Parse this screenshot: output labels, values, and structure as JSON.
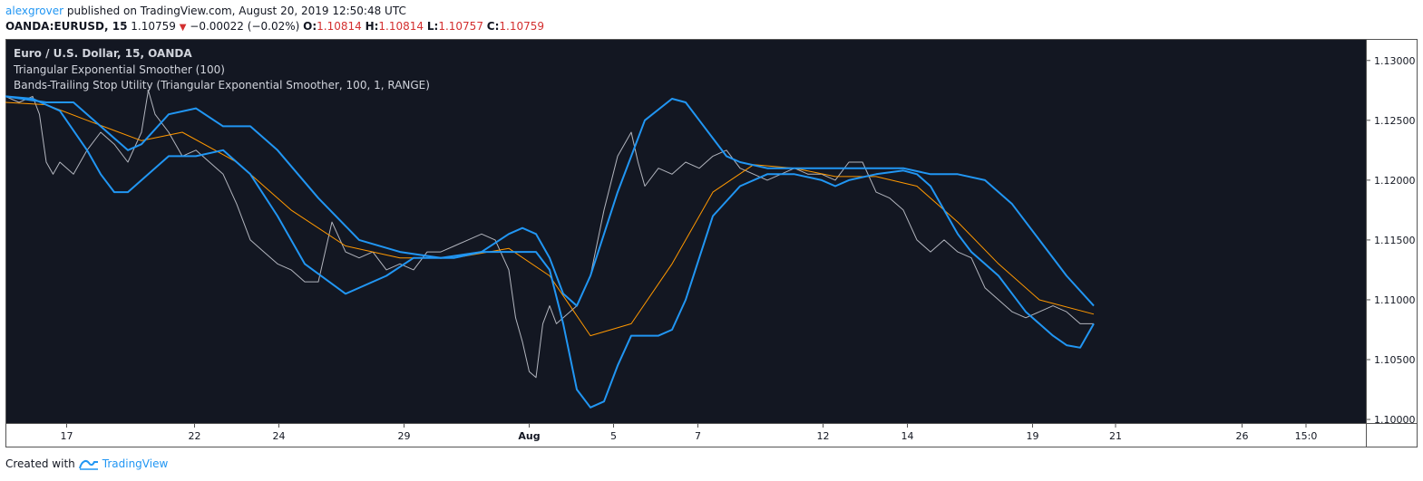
{
  "header": {
    "user": "alexgrover",
    "published": "published on TradingView.com, August 20, 2019 12:50:48 UTC",
    "symbol": "OANDA:EURUSD, 15",
    "last": "1.10759",
    "change": "−0.00022 (−0.02%)",
    "o_label": "O:",
    "o_val": "1.10814",
    "h_label": "H:",
    "h_val": "1.10814",
    "l_label": "L:",
    "l_val": "1.10757",
    "c_label": "C:",
    "c_val": "1.10759"
  },
  "legend": {
    "title": "Euro / U.S. Dollar, 15, OANDA",
    "ind1": "Triangular Exponential Smoother (100)",
    "ind2": "Bands-Trailing Stop Utility (Triangular Exponential Smoother, 100, 1, RANGE)"
  },
  "footer": {
    "created": "Created with",
    "brand": "TradingView"
  },
  "colors": {
    "background": "#131722",
    "price": "#b2b5be",
    "smoother": "#ff9800",
    "bands": "#2196f3",
    "down": "#d32f2f",
    "link": "#2196f3"
  },
  "chart_data": {
    "type": "line",
    "xlabel": "",
    "ylabel": "",
    "ylim": [
      1.0997,
      1.1318
    ],
    "xlim": [
      0,
      100
    ],
    "y_ticks": [
      "1.13000",
      "1.12500",
      "1.12000",
      "1.11500",
      "1.11000",
      "1.10500",
      "1.10000"
    ],
    "y_tick_values": [
      1.13,
      1.125,
      1.12,
      1.115,
      1.11,
      1.105,
      1.1
    ],
    "x_ticks": [
      {
        "label": "17",
        "x": 4.5
      },
      {
        "label": "22",
        "x": 13.9
      },
      {
        "label": "24",
        "x": 20.1
      },
      {
        "label": "29",
        "x": 29.3
      },
      {
        "label": "Aug",
        "x": 38.5,
        "bold": true
      },
      {
        "label": "5",
        "x": 44.7
      },
      {
        "label": "7",
        "x": 50.9
      },
      {
        "label": "12",
        "x": 60.1
      },
      {
        "label": "14",
        "x": 66.3
      },
      {
        "label": "19",
        "x": 75.5
      },
      {
        "label": "21",
        "x": 81.6
      },
      {
        "label": "26",
        "x": 90.9
      },
      {
        "label": "15:0",
        "x": 95.6
      }
    ],
    "grid": false,
    "legend": "top-left",
    "series": [
      {
        "key": "price",
        "x": [
          0,
          1,
          2,
          2.5,
          3,
          3.5,
          4,
          5,
          6,
          7,
          8,
          9,
          10,
          10.5,
          11,
          12,
          13,
          14,
          15,
          16,
          17,
          18,
          19,
          20,
          21,
          22,
          23,
          24,
          25,
          26,
          27,
          28,
          29,
          30,
          31,
          32,
          33,
          34,
          35,
          36,
          37,
          37.5,
          38,
          38.5,
          39,
          39.5,
          40,
          40.5,
          41,
          42,
          43,
          44,
          45,
          46,
          46.5,
          47,
          48,
          49,
          50,
          51,
          52,
          53,
          54,
          55,
          56,
          57,
          58,
          59,
          60,
          61,
          62,
          63,
          64,
          65,
          66,
          67,
          68,
          69,
          70,
          71,
          72,
          73,
          74,
          75,
          76,
          77,
          78,
          79,
          80
        ],
        "y": [
          1.127,
          1.1265,
          1.127,
          1.1255,
          1.1215,
          1.1205,
          1.1215,
          1.1205,
          1.1225,
          1.124,
          1.123,
          1.1215,
          1.124,
          1.1275,
          1.1255,
          1.124,
          1.122,
          1.1225,
          1.1215,
          1.1205,
          1.118,
          1.115,
          1.114,
          1.113,
          1.1125,
          1.1115,
          1.1115,
          1.1165,
          1.114,
          1.1135,
          1.114,
          1.1125,
          1.113,
          1.1125,
          1.114,
          1.114,
          1.1145,
          1.115,
          1.1155,
          1.115,
          1.1125,
          1.1085,
          1.1065,
          1.104,
          1.1035,
          1.108,
          1.1095,
          1.108,
          1.1085,
          1.1095,
          1.112,
          1.1175,
          1.122,
          1.124,
          1.1215,
          1.1195,
          1.121,
          1.1205,
          1.1215,
          1.121,
          1.122,
          1.1225,
          1.121,
          1.1205,
          1.12,
          1.1205,
          1.121,
          1.1205,
          1.1205,
          1.12,
          1.1215,
          1.1215,
          1.119,
          1.1185,
          1.1175,
          1.115,
          1.114,
          1.115,
          1.114,
          1.1135,
          1.111,
          1.11,
          1.109,
          1.1085,
          1.109,
          1.1095,
          1.109,
          1.108,
          1.108
        ]
      },
      {
        "key": "smoother",
        "x": [
          0,
          3,
          6,
          10,
          13,
          17,
          21,
          25,
          29,
          33,
          37,
          40,
          43,
          46,
          49,
          52,
          55,
          58,
          61,
          64,
          67,
          70,
          73,
          76,
          80
        ],
        "y": [
          1.1265,
          1.1263,
          1.125,
          1.1233,
          1.124,
          1.1215,
          1.1175,
          1.1145,
          1.1135,
          1.1135,
          1.1143,
          1.112,
          1.107,
          1.108,
          1.113,
          1.119,
          1.1213,
          1.121,
          1.1203,
          1.1203,
          1.1195,
          1.1165,
          1.113,
          1.11,
          1.1088
        ]
      },
      {
        "key": "upper",
        "x": [
          0,
          3,
          5,
          7,
          9,
          10,
          12,
          14,
          16,
          18,
          20,
          23,
          26,
          29,
          32,
          35,
          37,
          38,
          39,
          40,
          41,
          42,
          43,
          45,
          47,
          49,
          50,
          51,
          52,
          53,
          54,
          56,
          58,
          60,
          62,
          64,
          66,
          68,
          70,
          72,
          74,
          76,
          78,
          80
        ],
        "y": [
          1.127,
          1.1265,
          1.1265,
          1.1245,
          1.1225,
          1.123,
          1.1255,
          1.126,
          1.1245,
          1.1245,
          1.1225,
          1.1185,
          1.115,
          1.114,
          1.1135,
          1.114,
          1.1155,
          1.116,
          1.1155,
          1.1135,
          1.1105,
          1.1095,
          1.112,
          1.119,
          1.125,
          1.1268,
          1.1265,
          1.125,
          1.1235,
          1.122,
          1.1215,
          1.121,
          1.121,
          1.121,
          1.121,
          1.121,
          1.121,
          1.1205,
          1.1205,
          1.12,
          1.118,
          1.115,
          1.112,
          1.1095
        ]
      },
      {
        "key": "lower",
        "x": [
          0,
          2,
          4,
          6,
          7,
          8,
          9,
          10,
          12,
          14,
          16,
          18,
          20,
          22,
          25,
          28,
          30,
          33,
          35,
          37,
          39,
          40,
          41,
          42,
          43,
          44,
          45,
          46,
          47,
          48,
          49,
          50,
          51,
          52,
          54,
          56,
          58,
          60,
          61,
          62,
          64,
          66,
          67,
          68,
          69,
          70,
          71,
          72,
          73,
          74,
          75,
          76,
          77,
          78,
          79,
          80
        ],
        "y": [
          1.127,
          1.1268,
          1.1258,
          1.1225,
          1.1205,
          1.119,
          1.119,
          1.12,
          1.122,
          1.122,
          1.1225,
          1.1205,
          1.117,
          1.113,
          1.1105,
          1.112,
          1.1135,
          1.1135,
          1.114,
          1.114,
          1.114,
          1.1125,
          1.108,
          1.1025,
          1.101,
          1.1015,
          1.1045,
          1.107,
          1.107,
          1.107,
          1.1075,
          1.11,
          1.1135,
          1.117,
          1.1195,
          1.1205,
          1.1205,
          1.12,
          1.1195,
          1.12,
          1.1205,
          1.1208,
          1.1205,
          1.1195,
          1.1175,
          1.1155,
          1.114,
          1.113,
          1.112,
          1.1105,
          1.109,
          1.108,
          1.107,
          1.1062,
          1.106,
          1.108
        ]
      }
    ]
  }
}
